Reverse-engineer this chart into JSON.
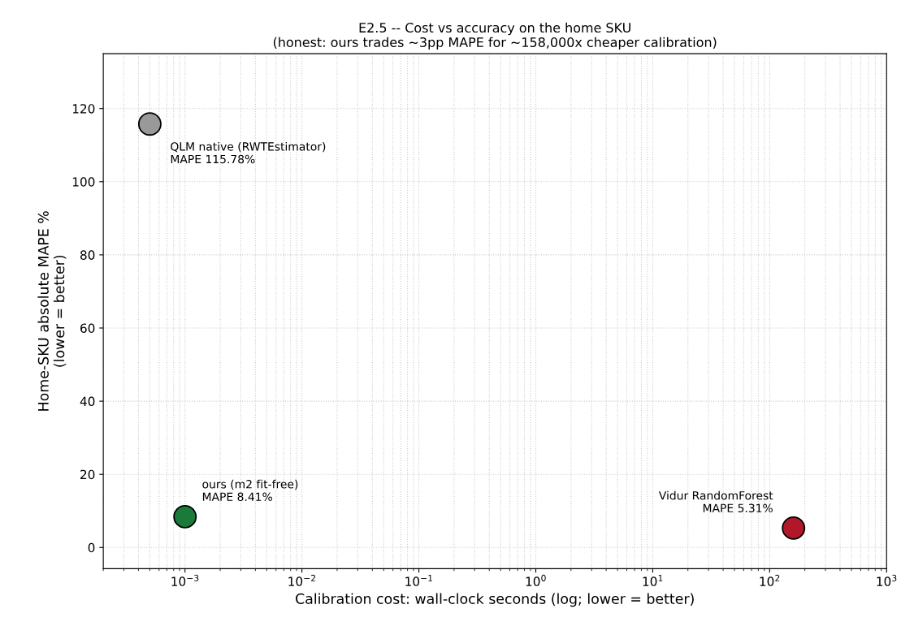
{
  "chart_data": {
    "type": "scatter",
    "title": "E2.5 -- Cost vs accuracy on the home SKU\n(honest: ours trades ~3pp MAPE for ~158,000x cheaper calibration)",
    "xlabel": "Calibration cost: wall-clock seconds (log; lower = better)",
    "ylabel": "Home-SKU absolute MAPE %\n(lower = better)",
    "x": [
      0.0005,
      0.001,
      160
    ],
    "values": [
      115.78,
      8.41,
      5.31
    ],
    "colors": [
      "#999999",
      "#1a7a3a",
      "#b0182a"
    ],
    "annotations": [
      {
        "text": "QLM native (RWTEstimator)\nMAPE 115.78%",
        "x": 0.0005,
        "y": 115.78
      },
      {
        "text": "ours (m2 fit-free)\nMAPE 8.41%",
        "x": 0.001,
        "y": 8.41
      },
      {
        "text": "Vidur RandomForest\nMAPE 5.31%",
        "x": 160,
        "y": 5.31
      }
    ],
    "log": "x",
    "xlim": [
      0.0002,
      1000
    ],
    "xticks": [
      {
        "value": 0.001,
        "label": "10$^{−3}$"
      },
      {
        "value": 0.01,
        "label": "10$^{−2}$"
      },
      {
        "value": 0.1,
        "label": "10$^{−1}$"
      },
      {
        "value": 1,
        "label": "10$^{0}$"
      },
      {
        "value": 10,
        "label": "10$^{1}$"
      },
      {
        "value": 100,
        "label": "10$^{2}$"
      },
      {
        "value": 1000,
        "label": "10$^{3}$"
      }
    ],
    "ylim": [
      -5.8,
      135
    ],
    "yticks": [
      0,
      20,
      40,
      60,
      80,
      100,
      120
    ],
    "grid": true,
    "marker": "circle",
    "legend": false
  }
}
